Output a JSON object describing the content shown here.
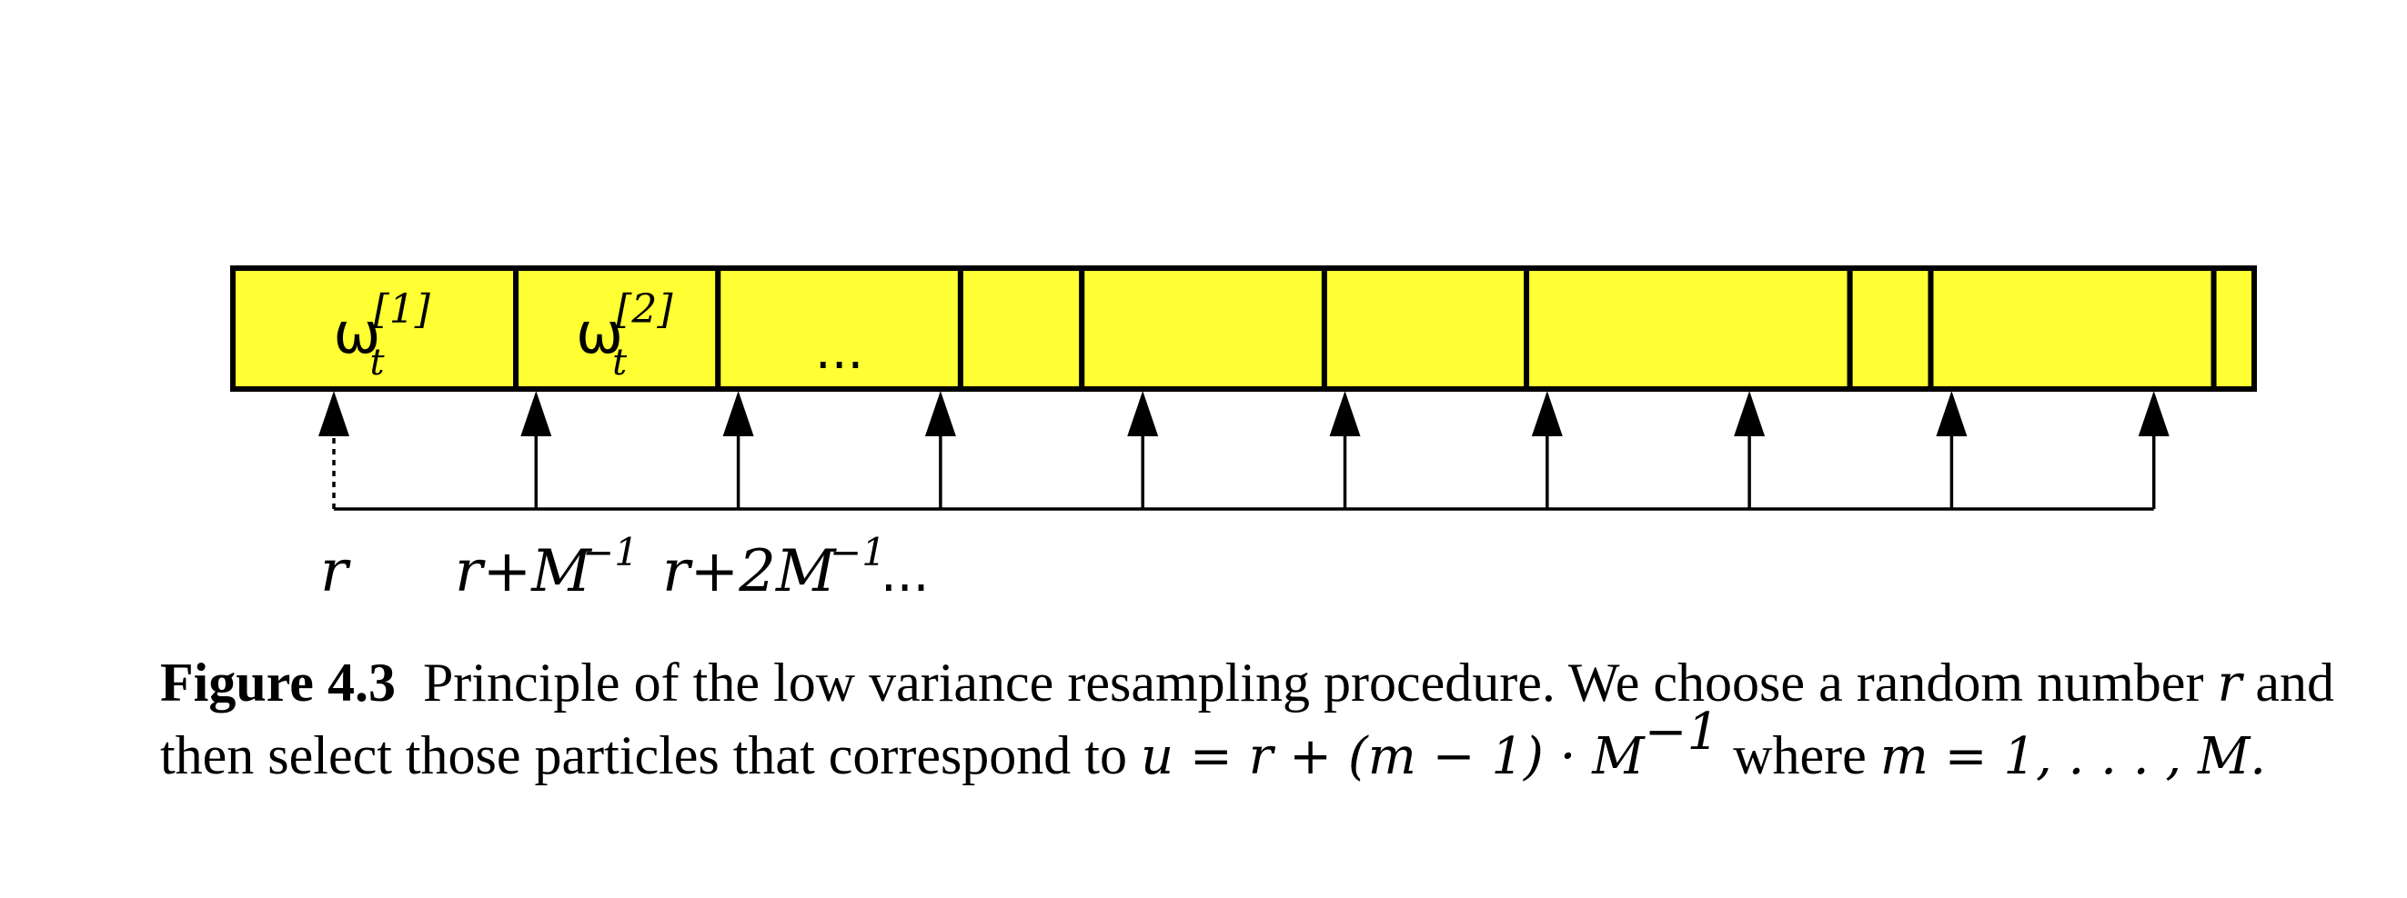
{
  "figure": {
    "cells": [
      {
        "symbol": "ω",
        "subscript": "t",
        "superscript": "[1]"
      },
      {
        "symbol": "ω",
        "subscript": "t",
        "superscript": "[2]"
      },
      {
        "symbol": "...",
        "subscript": "",
        "superscript": ""
      },
      {
        "symbol": "",
        "subscript": "",
        "superscript": ""
      },
      {
        "symbol": "",
        "subscript": "",
        "superscript": ""
      },
      {
        "symbol": "",
        "subscript": "",
        "superscript": ""
      },
      {
        "symbol": "",
        "subscript": "",
        "superscript": ""
      },
      {
        "symbol": "",
        "subscript": "",
        "superscript": ""
      },
      {
        "symbol": "",
        "subscript": "",
        "superscript": ""
      },
      {
        "symbol": "",
        "subscript": "",
        "superscript": ""
      }
    ],
    "cell_fractions": [
      0.14,
      0.1,
      0.12,
      0.06,
      0.12,
      0.1,
      0.16,
      0.04,
      0.14,
      0.02
    ],
    "pointer_count": 10,
    "labels": {
      "r": "r",
      "r1_base": "r+M",
      "r1_exp": "−1",
      "r2_base": "r+2M",
      "r2_exp": "−1",
      "ellipsis": "..."
    },
    "colors": {
      "cell_fill": "#ffff33",
      "stroke": "#000000"
    }
  },
  "caption": {
    "label": "Figure 4.3",
    "text_1": "Principle of the low variance resampling procedure.  We choose a random number ",
    "math_r": "r",
    "text_2": " and then select those particles that correspond to ",
    "math_u": "u = r + (m − 1) · M",
    "math_u_exp": "−1",
    "text_3": " where ",
    "math_m": "m = 1, . . . , M."
  }
}
